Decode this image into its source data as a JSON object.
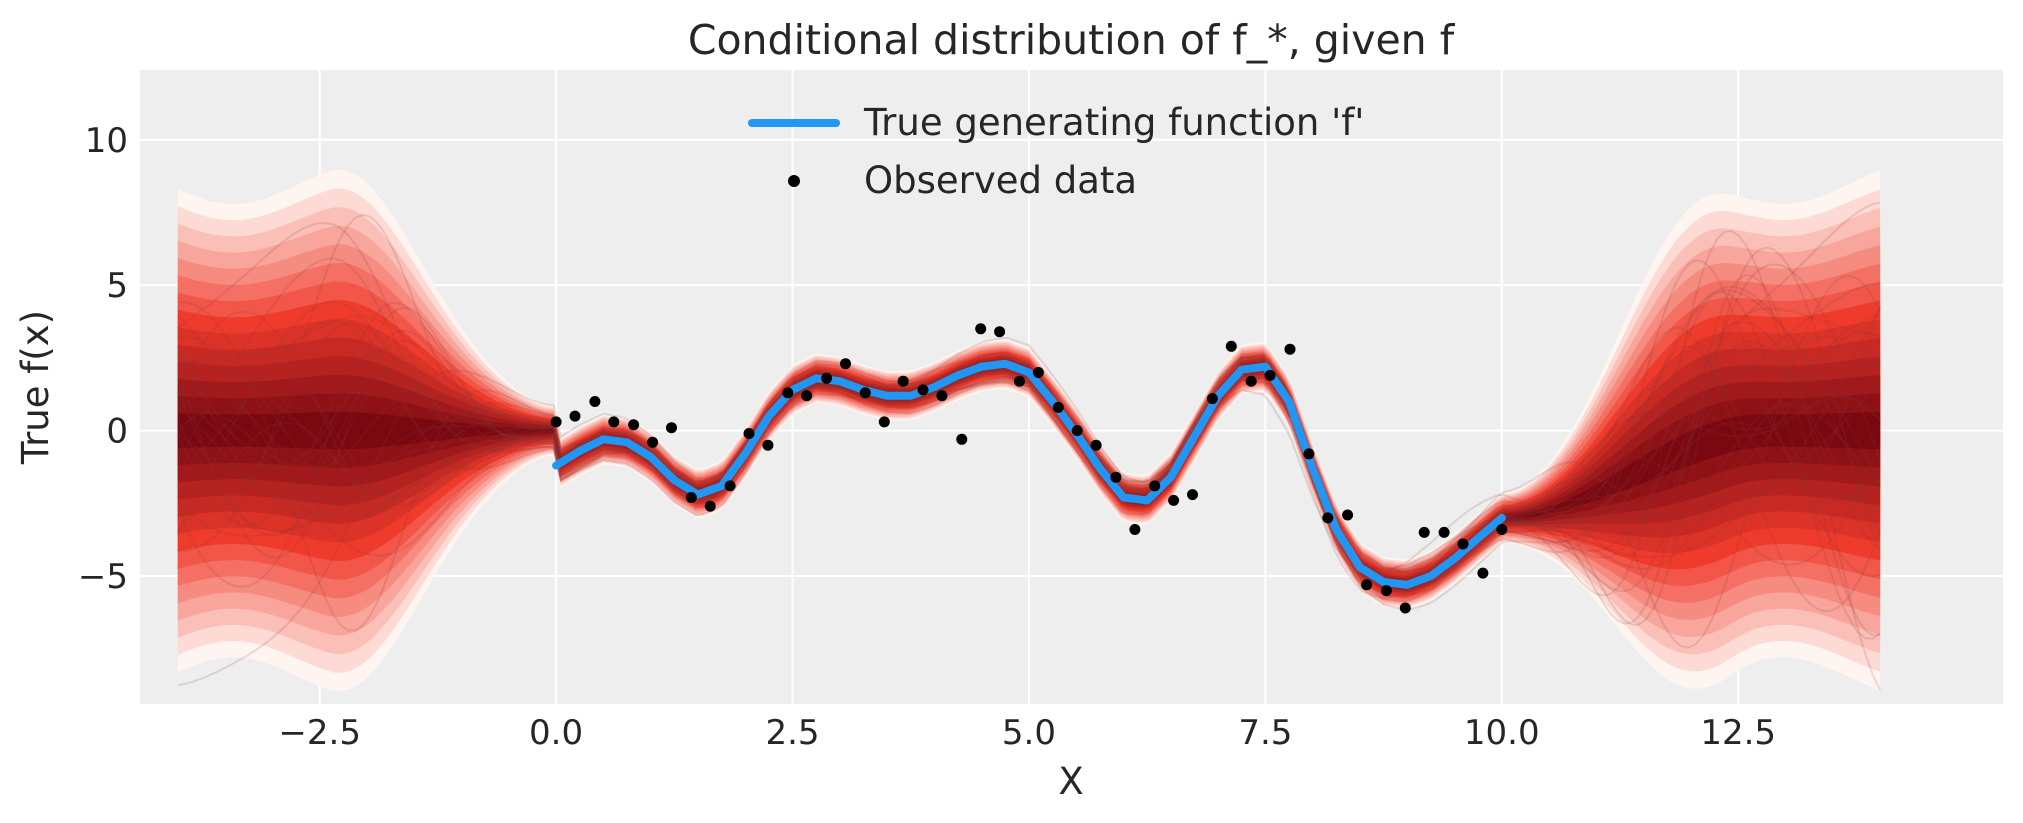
{
  "chart_data": {
    "type": "line",
    "title": "Conditional distribution of f_*, given f",
    "xlabel": "X",
    "ylabel": "True f(x)",
    "xlim": [
      -4.4,
      15.3
    ],
    "ylim": [
      -9.4,
      12.4
    ],
    "xticks": [
      -2.5,
      0.0,
      2.5,
      5.0,
      7.5,
      10.0,
      12.5
    ],
    "xtick_labels": [
      "−2.5",
      "0.0",
      "2.5",
      "5.0",
      "7.5",
      "10.0",
      "12.5"
    ],
    "yticks": [
      -5,
      0,
      5,
      10
    ],
    "ytick_labels": [
      "−5",
      "0",
      "5",
      "10"
    ],
    "grid": true,
    "legend_position": "top-center",
    "colors": {
      "background": "#eeeeee",
      "grid": "#ffffff",
      "true_function": "#2196f3",
      "observed": "#000000",
      "band_dark": "#67000d",
      "band_light": "#fff5f0",
      "sample_lines": "#8b3a3a"
    },
    "band_x_range": [
      -4,
      14
    ],
    "series": [
      {
        "name": "True generating function 'f'",
        "kind": "line",
        "x": [
          0.0,
          0.25,
          0.5,
          0.75,
          1.0,
          1.25,
          1.5,
          1.75,
          2.0,
          2.25,
          2.5,
          2.75,
          3.0,
          3.25,
          3.5,
          3.75,
          4.0,
          4.25,
          4.5,
          4.75,
          5.0,
          5.25,
          5.5,
          5.75,
          6.0,
          6.25,
          6.5,
          6.75,
          7.0,
          7.25,
          7.5,
          7.75,
          8.0,
          8.25,
          8.5,
          8.75,
          9.0,
          9.25,
          9.5,
          9.75,
          10.0
        ],
        "y": [
          -1.2,
          -0.7,
          -0.3,
          -0.4,
          -0.9,
          -1.7,
          -2.2,
          -1.9,
          -0.8,
          0.5,
          1.4,
          1.8,
          1.7,
          1.4,
          1.2,
          1.2,
          1.5,
          1.9,
          2.2,
          2.3,
          2.0,
          1.0,
          -0.1,
          -1.3,
          -2.3,
          -2.4,
          -1.6,
          -0.2,
          1.2,
          2.1,
          2.2,
          1.0,
          -1.3,
          -3.4,
          -4.7,
          -5.2,
          -5.3,
          -5.0,
          -4.4,
          -3.7,
          -3.0
        ]
      },
      {
        "name": "Observed data",
        "kind": "scatter",
        "x": [
          0.0,
          0.2,
          0.41,
          0.61,
          0.82,
          1.02,
          1.22,
          1.43,
          1.63,
          1.84,
          2.04,
          2.24,
          2.45,
          2.65,
          2.86,
          3.06,
          3.27,
          3.47,
          3.67,
          3.88,
          4.08,
          4.29,
          4.49,
          4.69,
          4.9,
          5.1,
          5.31,
          5.51,
          5.71,
          5.92,
          6.12,
          6.33,
          6.53,
          6.73,
          6.94,
          7.14,
          7.35,
          7.55,
          7.76,
          7.96,
          8.16,
          8.37,
          8.57,
          8.78,
          8.98,
          9.18,
          9.39,
          9.59,
          9.8,
          10.0
        ],
        "y": [
          0.3,
          0.5,
          1.0,
          0.3,
          0.2,
          -0.4,
          0.1,
          -2.3,
          -2.6,
          -1.9,
          -0.1,
          -0.5,
          1.3,
          1.2,
          1.8,
          2.3,
          1.3,
          0.3,
          1.7,
          1.4,
          1.2,
          -0.3,
          3.5,
          3.4,
          1.7,
          2.0,
          0.8,
          0.0,
          -0.5,
          -1.6,
          -3.4,
          -1.9,
          -2.4,
          -2.2,
          1.1,
          2.9,
          1.7,
          1.9,
          2.8,
          -0.8,
          -3.0,
          -2.9,
          -5.3,
          -5.5,
          -6.1,
          -3.5,
          -3.5,
          -3.9,
          -4.9,
          -3.4
        ]
      }
    ]
  }
}
